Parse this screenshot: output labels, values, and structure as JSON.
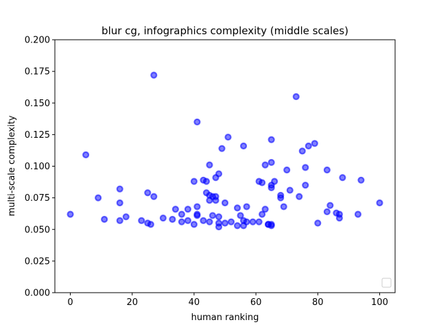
{
  "chart_data": {
    "type": "scatter",
    "title": "blur cg, infographics complexity (middle scales)",
    "xlabel": "human ranking",
    "ylabel": "multi-scale complexity",
    "xlim": [
      -5,
      105
    ],
    "ylim": [
      0,
      0.2
    ],
    "xticks": [
      0,
      20,
      40,
      60,
      80,
      100
    ],
    "xtick_labels": [
      "0",
      "20",
      "40",
      "60",
      "80",
      "100"
    ],
    "yticks": [
      0,
      0.025,
      0.05,
      0.075,
      0.1,
      0.125,
      0.15,
      0.175,
      0.2
    ],
    "ytick_labels": [
      "0.000",
      "0.025",
      "0.050",
      "0.075",
      "0.100",
      "0.125",
      "0.150",
      "0.175",
      "0.200"
    ],
    "grid": false,
    "legend": "lower-right",
    "marker_color": "#0000ff",
    "series": [
      {
        "points": [
          [
            0,
            0.062
          ],
          [
            5,
            0.109
          ],
          [
            9,
            0.075
          ],
          [
            11,
            0.058
          ],
          [
            16,
            0.082
          ],
          [
            16,
            0.071
          ],
          [
            16,
            0.057
          ],
          [
            18,
            0.06
          ],
          [
            23,
            0.057
          ],
          [
            25,
            0.079
          ],
          [
            25,
            0.055
          ],
          [
            26,
            0.054
          ],
          [
            27,
            0.076
          ],
          [
            27,
            0.172
          ],
          [
            30,
            0.059
          ],
          [
            33,
            0.058
          ],
          [
            34,
            0.066
          ],
          [
            36,
            0.062
          ],
          [
            36,
            0.056
          ],
          [
            38,
            0.066
          ],
          [
            38,
            0.057
          ],
          [
            40,
            0.088
          ],
          [
            40,
            0.054
          ],
          [
            41,
            0.135
          ],
          [
            41,
            0.068
          ],
          [
            41,
            0.062
          ],
          [
            41,
            0.061
          ],
          [
            43,
            0.089
          ],
          [
            43,
            0.057
          ],
          [
            44,
            0.088
          ],
          [
            44,
            0.079
          ],
          [
            45,
            0.101
          ],
          [
            45,
            0.077
          ],
          [
            45,
            0.073
          ],
          [
            45,
            0.056
          ],
          [
            46,
            0.076
          ],
          [
            46,
            0.061
          ],
          [
            47,
            0.091
          ],
          [
            47,
            0.076
          ],
          [
            47,
            0.073
          ],
          [
            48,
            0.094
          ],
          [
            48,
            0.06
          ],
          [
            48,
            0.055
          ],
          [
            48,
            0.052
          ],
          [
            49,
            0.114
          ],
          [
            50,
            0.071
          ],
          [
            50,
            0.055
          ],
          [
            51,
            0.123
          ],
          [
            52,
            0.056
          ],
          [
            54,
            0.067
          ],
          [
            54,
            0.053
          ],
          [
            55,
            0.061
          ],
          [
            56,
            0.116
          ],
          [
            56,
            0.057
          ],
          [
            56,
            0.053
          ],
          [
            57,
            0.068
          ],
          [
            57,
            0.056
          ],
          [
            59,
            0.056
          ],
          [
            61,
            0.088
          ],
          [
            61,
            0.056
          ],
          [
            62,
            0.087
          ],
          [
            62,
            0.062
          ],
          [
            63,
            0.101
          ],
          [
            63,
            0.066
          ],
          [
            64,
            0.054
          ],
          [
            64,
            0.054
          ],
          [
            65,
            0.121
          ],
          [
            65,
            0.103
          ],
          [
            65,
            0.085
          ],
          [
            65,
            0.083
          ],
          [
            65,
            0.054
          ],
          [
            65,
            0.053
          ],
          [
            66,
            0.088
          ],
          [
            68,
            0.077
          ],
          [
            68,
            0.075
          ],
          [
            69,
            0.068
          ],
          [
            70,
            0.097
          ],
          [
            71,
            0.081
          ],
          [
            73,
            0.155
          ],
          [
            74,
            0.076
          ],
          [
            75,
            0.112
          ],
          [
            76,
            0.099
          ],
          [
            76,
            0.085
          ],
          [
            77,
            0.116
          ],
          [
            79,
            0.118
          ],
          [
            80,
            0.055
          ],
          [
            83,
            0.097
          ],
          [
            83,
            0.064
          ],
          [
            84,
            0.069
          ],
          [
            86,
            0.063
          ],
          [
            87,
            0.062
          ],
          [
            87,
            0.059
          ],
          [
            88,
            0.091
          ],
          [
            93,
            0.062
          ],
          [
            94,
            0.089
          ],
          [
            100,
            0.071
          ]
        ]
      }
    ]
  }
}
